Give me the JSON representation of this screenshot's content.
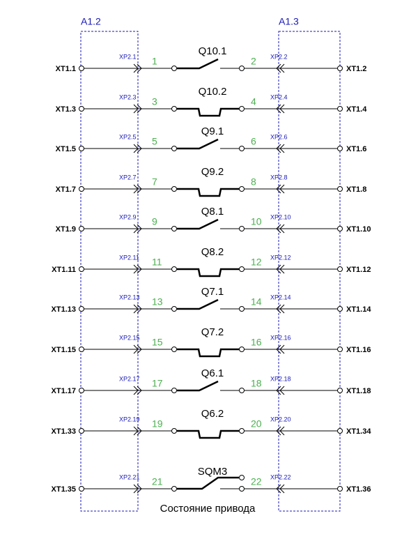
{
  "blocks": [
    {
      "label": "A1.2"
    },
    {
      "label": "A1.3"
    }
  ],
  "rows": [
    {
      "left_terminal": "XT1.1",
      "left_connector": "XP2.1",
      "left_wire": "1",
      "contact": "Q10.1",
      "contact_type": "make",
      "right_wire": "2",
      "right_connector": "XP2.2",
      "right_terminal": "XT1.2"
    },
    {
      "left_terminal": "XT1.3",
      "left_connector": "XP2.3",
      "left_wire": "3",
      "contact": "Q10.2",
      "contact_type": "break",
      "right_wire": "4",
      "right_connector": "XP2.4",
      "right_terminal": "XT1.4"
    },
    {
      "left_terminal": "XT1.5",
      "left_connector": "XP2.5",
      "left_wire": "5",
      "contact": "Q9.1",
      "contact_type": "make",
      "right_wire": "6",
      "right_connector": "XP2.6",
      "right_terminal": "XT1.6"
    },
    {
      "left_terminal": "XT1.7",
      "left_connector": "XP2.7",
      "left_wire": "7",
      "contact": "Q9.2",
      "contact_type": "break",
      "right_wire": "8",
      "right_connector": "XP2.8",
      "right_terminal": "XT1.8"
    },
    {
      "left_terminal": "XT1.9",
      "left_connector": "XP2.9",
      "left_wire": "9",
      "contact": "Q8.1",
      "contact_type": "make",
      "right_wire": "10",
      "right_connector": "XP2.10",
      "right_terminal": "XT1.10"
    },
    {
      "left_terminal": "XT1.11",
      "left_connector": "XP2.11",
      "left_wire": "11",
      "contact": "Q8.2",
      "contact_type": "break",
      "right_wire": "12",
      "right_connector": "XP2.12",
      "right_terminal": "XT1.12"
    },
    {
      "left_terminal": "XT1.13",
      "left_connector": "XP2.13",
      "left_wire": "13",
      "contact": "Q7.1",
      "contact_type": "make",
      "right_wire": "14",
      "right_connector": "XP2.14",
      "right_terminal": "XT1.14"
    },
    {
      "left_terminal": "XT1.15",
      "left_connector": "XP2.15",
      "left_wire": "15",
      "contact": "Q7.2",
      "contact_type": "break",
      "right_wire": "16",
      "right_connector": "XP2.16",
      "right_terminal": "XT1.16"
    },
    {
      "left_terminal": "XT1.17",
      "left_connector": "XP2.17",
      "left_wire": "17",
      "contact": "Q6.1",
      "contact_type": "make",
      "right_wire": "18",
      "right_connector": "XP2.18",
      "right_terminal": "XT1.18"
    },
    {
      "left_terminal": "XT1.33",
      "left_connector": "XP2.19",
      "left_wire": "19",
      "contact": "Q6.2",
      "contact_type": "break",
      "right_wire": "20",
      "right_connector": "XP2.20",
      "right_terminal": "XT1.34"
    },
    {
      "left_terminal": "XT1.35",
      "left_connector": "XP2.21",
      "left_wire": "21",
      "contact": "SQM3",
      "contact_type": "changeover",
      "right_wire": "22",
      "right_connector": "XP2.22",
      "right_terminal": "XT1.36"
    }
  ],
  "caption": "Состояние привода"
}
